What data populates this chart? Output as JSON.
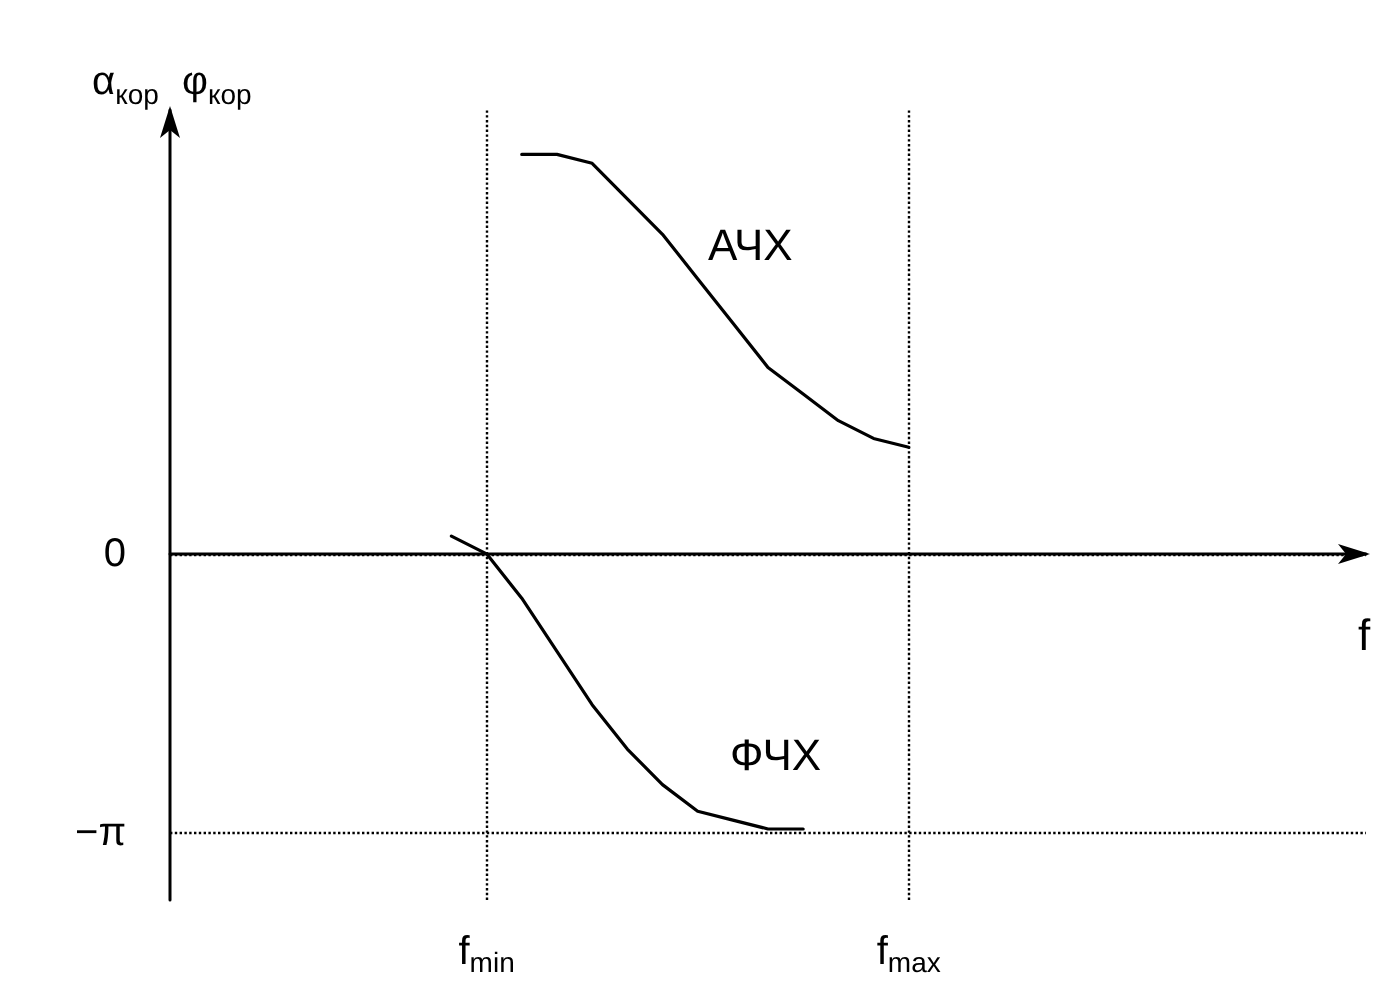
{
  "chart_data": {
    "type": "line",
    "xlabel": "f",
    "ylabel": "α$_{кор}$",
    "categories": [
      null,
      null,
      null,
      null,
      null,
      null,
      null,
      null,
      null,
      "f$_{min}$",
      null,
      null,
      null,
      null,
      null,
      null,
      null,
      null,
      null,
      null,
      null,
      "f$_{max}$",
      null,
      null,
      null,
      null,
      null,
      null,
      null,
      null,
      null,
      null,
      null,
      null,
      null
    ],
    "ylim": [
      -3.9,
      5
    ],
    "yticks": [
      {
        "value": -3.14159,
        "label": "−π"
      },
      {
        "value": 0,
        "label": "0"
      }
    ],
    "series": [
      {
        "color": "#000000",
        "values": [
          null,
          null,
          null,
          null,
          null,
          null,
          null,
          null,
          null,
          null,
          4.5,
          4.5,
          4.4,
          4.0,
          3.6,
          3.1,
          2.6,
          2.1,
          1.8,
          1.5,
          1.3,
          1.2,
          null,
          null,
          null,
          null,
          null,
          null,
          null,
          null,
          null,
          null,
          null,
          null,
          null
        ]
      },
      {
        "color": "#000000",
        "values": [
          null,
          null,
          null,
          null,
          null,
          null,
          null,
          null,
          0.2,
          0,
          -0.5,
          -1.1,
          -1.7,
          -2.2,
          -2.6,
          -2.9,
          -3.0,
          -3.1,
          -3.1,
          null,
          null,
          null,
          null,
          null,
          null,
          null,
          null,
          null,
          null,
          null,
          null,
          null,
          null,
          null,
          null
        ]
      }
    ],
    "ref_lines": [
      {
        "axis": "x",
        "value": "f$_{min}$",
        "line_style": "dotted",
        "color": "#000000"
      },
      {
        "axis": "x",
        "value": "f$_{max}$",
        "line_style": "dotted",
        "color": "#000000"
      }
    ],
    "annotations": [
      "АЧХ",
      "ФЧХ",
      "φ$_{кор}$"
    ],
    "marker": "none",
    "line_style": "solid",
    "grid": "y"
  }
}
